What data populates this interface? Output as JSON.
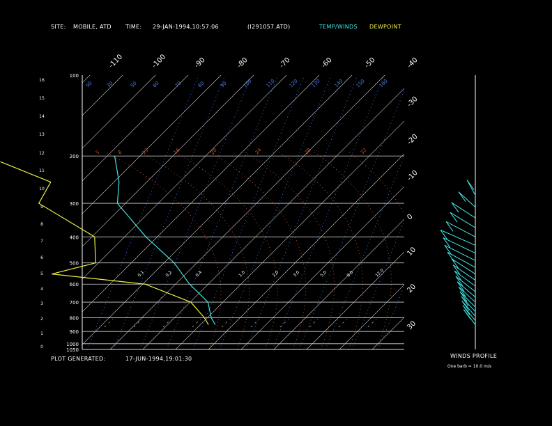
{
  "header": {
    "site_label": "SITE:",
    "site_value": "MOBILE, ATD",
    "time_label": "TIME:",
    "time_value": "29-JAN-1994,10:57:06",
    "file_id": "(I291057.ATD)",
    "legend_temp": "TEMP/WINDS",
    "legend_dew": "DEWPOINT",
    "temp_color": "#41e6e6",
    "dew_color": "#f0f040"
  },
  "footer": {
    "generated_label": "PLOT GENERATED:",
    "generated_value": "17-JUN-1994,19:01:30"
  },
  "wind_panel": {
    "title": "WINDS PROFILE",
    "note": "One barb = 10.0 m/s"
  },
  "chart_data": {
    "type": "line",
    "pressure_labels": [
      "100",
      "200",
      "300",
      "400",
      "500",
      "600",
      "700",
      "800",
      "900",
      "1000",
      "1050"
    ],
    "pressure_ticks": [
      100,
      200,
      300,
      400,
      500,
      600,
      700,
      800,
      900,
      1000,
      1050
    ],
    "height_km_ticks": [
      "0",
      "1",
      "2",
      "3",
      "4",
      "5",
      "6",
      "7",
      "8",
      "9",
      "10",
      "11",
      "12",
      "13",
      "14",
      "15",
      "16"
    ],
    "isotherm_labels": [
      "-110",
      "-100",
      "-90",
      "-80",
      "-70",
      "-60",
      "-50",
      "-40",
      "-30",
      "-20",
      "-10",
      "0",
      "10",
      "20",
      "30"
    ],
    "isotherm_values": [
      -110,
      -100,
      -90,
      -80,
      -70,
      -60,
      -50,
      -40,
      -30,
      -20,
      -10,
      0,
      10,
      20,
      30
    ],
    "mixing_ratio_labels_top": [
      "90",
      "30",
      "50",
      "60",
      "70",
      "80",
      "90",
      "100",
      "110",
      "120",
      "130",
      "140",
      "150",
      "160"
    ],
    "dry_adiabat_labels": [
      "5",
      "8",
      "13",
      "16",
      "20",
      "24",
      "28",
      "32"
    ],
    "thickness_labels": [
      "0.1",
      "0.2",
      "0.4",
      "1.0",
      "2.0",
      "3.0",
      "5.0",
      "8.0",
      "12.0"
    ],
    "temperature": {
      "name": "TEMP/WINDS",
      "points": [
        [
          850,
          23
        ],
        [
          800,
          20
        ],
        [
          700,
          15
        ],
        [
          600,
          5
        ],
        [
          500,
          -5
        ],
        [
          400,
          -20
        ],
        [
          300,
          -37
        ],
        [
          250,
          -42
        ],
        [
          200,
          -50
        ]
      ]
    },
    "dewpoint": {
      "name": "DEWPOINT",
      "points": [
        [
          850,
          21
        ],
        [
          800,
          18
        ],
        [
          700,
          10
        ],
        [
          600,
          -8
        ],
        [
          550,
          -38
        ],
        [
          500,
          -28
        ],
        [
          400,
          -35
        ],
        [
          300,
          -60
        ],
        [
          250,
          -62
        ],
        [
          210,
          -82
        ]
      ]
    },
    "winds": {
      "profile": [
        [
          200,
          0.0
        ],
        [
          230,
          0.3
        ],
        [
          260,
          0.55
        ],
        [
          290,
          0.6
        ],
        [
          320,
          0.75
        ],
        [
          350,
          0.95
        ],
        [
          380,
          0.85
        ],
        [
          410,
          0.8
        ],
        [
          440,
          0.7
        ],
        [
          470,
          0.55
        ],
        [
          500,
          0.5
        ],
        [
          530,
          0.45
        ],
        [
          560,
          0.4
        ],
        [
          590,
          0.35
        ],
        [
          620,
          0.3
        ],
        [
          650,
          0.25
        ],
        [
          680,
          0.2
        ],
        [
          710,
          0.18
        ],
        [
          740,
          0.15
        ],
        [
          770,
          0.12
        ]
      ]
    },
    "xlim": [
      -40,
      40
    ],
    "ylim": [
      1050,
      100
    ],
    "grid": true
  }
}
